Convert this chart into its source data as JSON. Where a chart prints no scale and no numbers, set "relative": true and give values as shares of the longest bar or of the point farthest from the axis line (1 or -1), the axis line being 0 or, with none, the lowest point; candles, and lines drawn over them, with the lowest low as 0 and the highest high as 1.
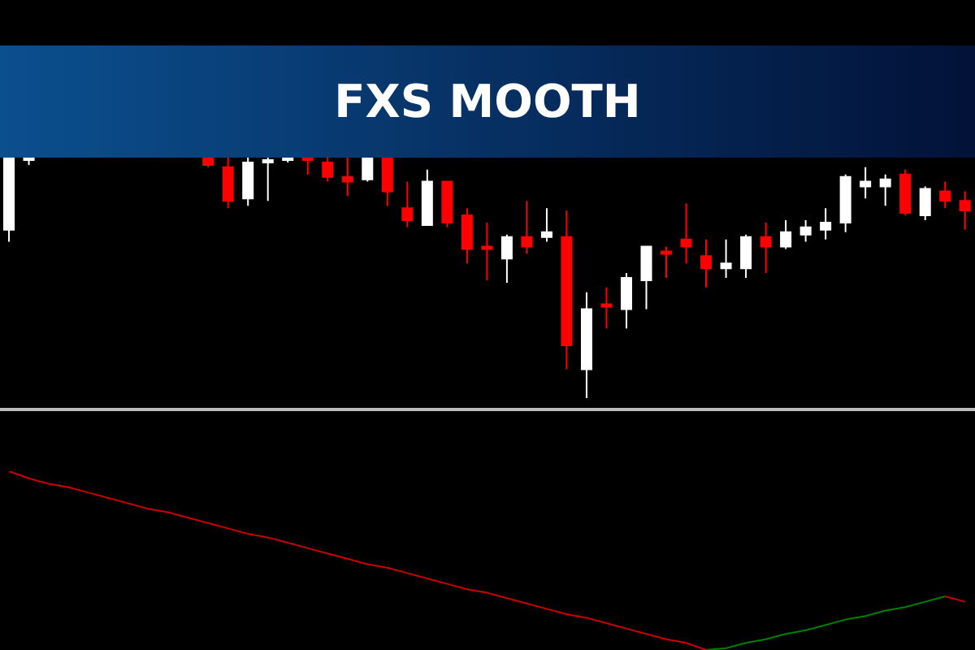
{
  "chart_data": [
    {
      "type": "candlestick",
      "title": "FXS MOOTH",
      "relative": true,
      "categories": [
        null,
        null,
        null,
        null,
        null,
        null,
        null,
        null,
        null,
        null,
        null,
        null,
        null,
        null,
        null,
        null,
        null,
        null,
        null,
        null,
        null,
        null,
        null,
        null,
        null,
        null,
        null,
        null,
        null,
        null,
        null,
        null,
        null,
        null,
        null,
        null,
        null,
        null,
        null,
        null,
        null,
        null,
        null,
        null,
        null,
        null,
        null,
        null,
        null
      ],
      "ohlc": [
        [
          0.7,
          1,
          0.65,
          1
        ],
        [
          0.99,
          1,
          0.97,
          1
        ],
        null,
        null,
        null,
        null,
        null,
        null,
        null,
        null,
        [
          1,
          1,
          0.96,
          0.97
        ],
        [
          0.96,
          1,
          0.79,
          0.82
        ],
        [
          0.83,
          1,
          0.8,
          0.98
        ],
        [
          0.98,
          1,
          0.82,
          0.99
        ],
        [
          0.99,
          1,
          0.98,
          1
        ],
        [
          1,
          1,
          0.93,
          0.99
        ],
        [
          0.98,
          1,
          0.9,
          0.92
        ],
        [
          0.92,
          1,
          0.84,
          0.9
        ],
        [
          0.91,
          1,
          0.9,
          1
        ],
        [
          1,
          1,
          0.8,
          0.86
        ],
        [
          0.79,
          0.9,
          0.71,
          0.74
        ],
        [
          0.72,
          0.95,
          0.72,
          0.9
        ],
        [
          0.9,
          0.9,
          0.71,
          0.73
        ],
        [
          0.76,
          0.79,
          0.56,
          0.62
        ],
        [
          0.63,
          0.73,
          0.49,
          0.62
        ],
        [
          0.58,
          0.68,
          0.48,
          0.67
        ],
        [
          0.67,
          0.82,
          0.6,
          0.63
        ],
        [
          0.67,
          0.79,
          0.65,
          0.69
        ],
        [
          0.67,
          0.78,
          0.12,
          0.22
        ],
        [
          0.12,
          0.44,
          0,
          0.37
        ],
        [
          0.39,
          0.46,
          0.29,
          0.38
        ],
        [
          0.37,
          0.52,
          0.29,
          0.5
        ],
        [
          0.49,
          0.63,
          0.37,
          0.63
        ],
        [
          0.61,
          0.63,
          0.5,
          0.6
        ],
        [
          0.66,
          0.81,
          0.56,
          0.63
        ],
        [
          0.59,
          0.66,
          0.46,
          0.54
        ],
        [
          0.54,
          0.66,
          0.5,
          0.56
        ],
        [
          0.54,
          0.68,
          0.5,
          0.67
        ],
        [
          0.67,
          0.73,
          0.52,
          0.63
        ],
        [
          0.63,
          0.74,
          0.62,
          0.69
        ],
        [
          0.68,
          0.74,
          0.65,
          0.71
        ],
        [
          0.7,
          0.79,
          0.66,
          0.73
        ],
        [
          0.73,
          0.93,
          0.69,
          0.92
        ],
        [
          0.88,
          0.96,
          0.83,
          0.9
        ],
        [
          0.88,
          0.93,
          0.8,
          0.91
        ],
        [
          0.93,
          0.95,
          0.76,
          0.77
        ],
        [
          0.76,
          0.88,
          0.74,
          0.87
        ],
        [
          0.86,
          0.9,
          0.79,
          0.82
        ],
        [
          0.82,
          0.86,
          0.7,
          0.78
        ]
      ]
    },
    {
      "type": "line",
      "relative": true,
      "categories": [
        null,
        null,
        null,
        null,
        null,
        null,
        null,
        null,
        null,
        null,
        null,
        null,
        null,
        null,
        null,
        null,
        null,
        null,
        null,
        null,
        null,
        null,
        null,
        null,
        null,
        null,
        null,
        null,
        null,
        null,
        null,
        null,
        null,
        null,
        null,
        null,
        null,
        null,
        null,
        null,
        null,
        null,
        null,
        null,
        null,
        null,
        null,
        null,
        null
      ],
      "series": [
        {
          "color": "#cc0000",
          "values": [
            1,
            0.96,
            0.93,
            0.91,
            0.88,
            0.85,
            0.82,
            0.79,
            0.77,
            0.74,
            0.71,
            0.68,
            0.65,
            0.63,
            0.6,
            0.57,
            0.54,
            0.51,
            0.48,
            0.46,
            0.43,
            0.4,
            0.37,
            0.34,
            0.32,
            0.29,
            0.26,
            0.23,
            0.2,
            0.18,
            0.15,
            0.12,
            0.09,
            0.06,
            0.04,
            0,
            null,
            null,
            null,
            null,
            null,
            null,
            null,
            null,
            null,
            null,
            null,
            0.3,
            0.27
          ]
        },
        {
          "color": "#008000",
          "values": [
            null,
            null,
            null,
            null,
            null,
            null,
            null,
            null,
            null,
            null,
            null,
            null,
            null,
            null,
            null,
            null,
            null,
            null,
            null,
            null,
            null,
            null,
            null,
            null,
            null,
            null,
            null,
            null,
            null,
            null,
            null,
            null,
            null,
            null,
            null,
            0,
            0.01,
            0.04,
            0.06,
            0.09,
            0.11,
            0.14,
            0.17,
            0.19,
            0.22,
            0.24,
            0.27,
            0.3,
            null
          ]
        }
      ]
    }
  ]
}
